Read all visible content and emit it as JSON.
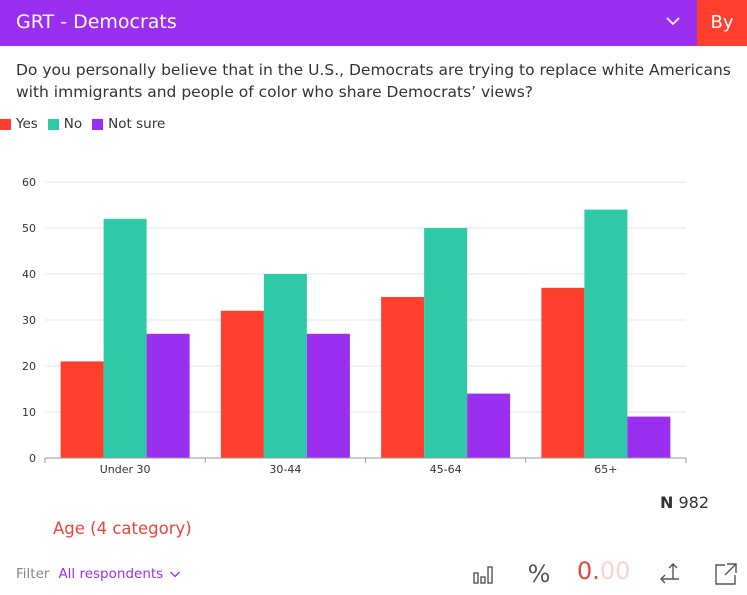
{
  "header": {
    "title": "GRT - Democrats",
    "by_label": "By"
  },
  "question": "Do you personally believe that in the U.S., Democrats are trying to replace white Americans with immigrants and people of color who share Democrats’ views?",
  "legend": [
    {
      "label": "Yes",
      "color": "#ff3f2e"
    },
    {
      "label": "No",
      "color": "#2ec9a6"
    },
    {
      "label": "Not sure",
      "color": "#9b2ff0"
    }
  ],
  "chart_data": {
    "type": "bar",
    "categories": [
      "Under 30",
      "30-44",
      "45-64",
      "65+"
    ],
    "series": [
      {
        "name": "Yes",
        "color": "#ff3f2e",
        "values": [
          21,
          32,
          35,
          37
        ]
      },
      {
        "name": "No",
        "color": "#2ec9a6",
        "values": [
          52,
          40,
          50,
          54
        ]
      },
      {
        "name": "Not sure",
        "color": "#9b2ff0",
        "values": [
          27,
          27,
          14,
          9
        ]
      }
    ],
    "ylim": [
      0,
      60
    ],
    "yticks": [
      0,
      10,
      20,
      30,
      40,
      50,
      60
    ],
    "grid": true,
    "legend_position": "top-left",
    "title": "",
    "xlabel": "",
    "ylabel": ""
  },
  "sample": {
    "n_prefix": "N",
    "n_value": "982"
  },
  "breakdown_label": "Age (4 category)",
  "filter": {
    "label": "Filter",
    "value": "All respondents"
  },
  "toolbar": {
    "percent_symbol": "%",
    "decimals_main": "0.",
    "decimals_faded": "00"
  }
}
